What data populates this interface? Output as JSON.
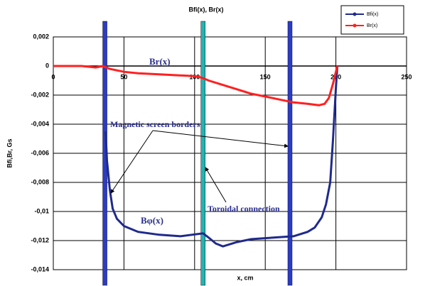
{
  "chart_data": {
    "type": "line",
    "title": "Bfi(x), Br(x)",
    "x_label": "x, cm",
    "y_label": "Bfi,Br, Gs",
    "xlim": [
      0,
      250
    ],
    "xticks": [
      0,
      50,
      100,
      150,
      200,
      250
    ],
    "ylim": [
      -0.014,
      0.002
    ],
    "yticks": [
      {
        "value": 0.002,
        "label": "0,002"
      },
      0,
      {
        "value": -0.002,
        "label": "-0,002"
      },
      {
        "value": -0.004,
        "label": "-0,004"
      },
      {
        "value": -0.006,
        "label": "-0,006"
      },
      {
        "value": -0.008,
        "label": "-0,008"
      },
      {
        "value": -0.01,
        "label": "-0,01"
      },
      {
        "value": -0.012,
        "label": "-0,012"
      },
      {
        "value": -0.014,
        "label": "-0,014"
      }
    ],
    "grid": true,
    "legend": "upper right",
    "series": [
      {
        "name": "Bfi(x)",
        "color": "#1f2a8c",
        "x": [
          37,
          38,
          40,
          42,
          45,
          50,
          60,
          75,
          90,
          106,
          110,
          115,
          120,
          130,
          140,
          155,
          170,
          180,
          185,
          190,
          193,
          196,
          198,
          200,
          201
        ],
        "values": [
          -0.0045,
          -0.0065,
          -0.0085,
          -0.0098,
          -0.0105,
          -0.011,
          -0.0114,
          -0.0116,
          -0.0117,
          -0.0115,
          -0.0118,
          -0.0122,
          -0.0124,
          -0.0121,
          -0.0119,
          -0.0118,
          -0.0117,
          -0.0114,
          -0.0111,
          -0.0104,
          -0.0095,
          -0.008,
          -0.005,
          -0.0015,
          0
        ]
      },
      {
        "name": "Br(x)",
        "color": "#ff2020",
        "x": [
          0,
          10,
          20,
          30,
          35,
          40,
          50,
          60,
          80,
          100,
          105,
          110,
          120,
          130,
          140,
          150,
          160,
          170,
          180,
          188,
          192,
          195,
          198,
          200,
          201
        ],
        "values": [
          0,
          0,
          0,
          -0.0001,
          0,
          -0.0002,
          -0.0004,
          -0.0005,
          -0.0006,
          -0.0007,
          -0.0008,
          -0.001,
          -0.0013,
          -0.0016,
          -0.0019,
          -0.0021,
          -0.0023,
          -0.0025,
          -0.0026,
          -0.0027,
          -0.0026,
          -0.0022,
          -0.0012,
          -0.0004,
          0
        ]
      }
    ],
    "vertical_markers": [
      {
        "x": 36.5,
        "color": "#2a3cc8"
      },
      {
        "x": 106,
        "color": "#1fb5b5"
      },
      {
        "x": 167.5,
        "color": "#2a3cc8"
      }
    ],
    "annotations": [
      "Br(x)",
      "Magnetic screen borders",
      "Toroidal connection",
      "Bφ(x)"
    ]
  }
}
